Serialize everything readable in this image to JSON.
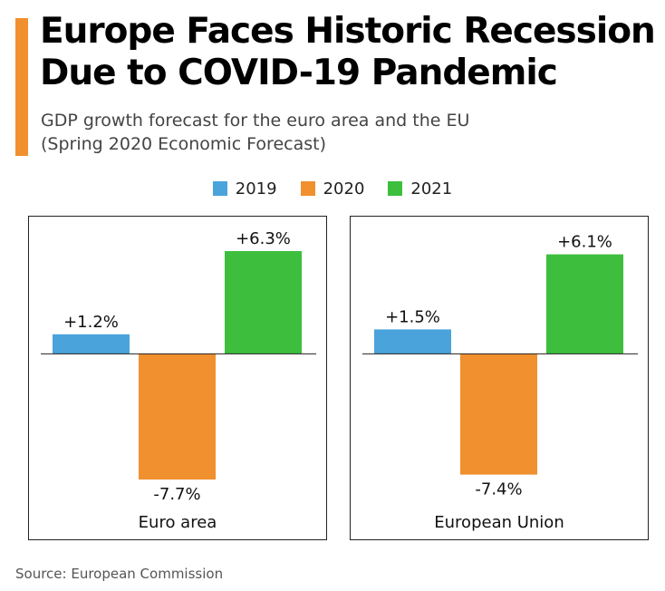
{
  "header": {
    "title_line1": "Europe Faces Historic Recession",
    "title_line2": "Due to COVID-19 Pandemic",
    "subtitle_line1": "GDP growth forecast for the euro area and the EU",
    "subtitle_line2": "(Spring 2020 Economic Forecast)"
  },
  "colors": {
    "accent": "#f0902f",
    "2019": "#4aa3db",
    "2020": "#f0902f",
    "2021": "#3dbf3d"
  },
  "legend": [
    "2019",
    "2020",
    "2021"
  ],
  "chart_data": [
    {
      "type": "bar",
      "title": "Euro area",
      "categories": [
        "2019",
        "2020",
        "2021"
      ],
      "values": [
        1.2,
        -7.7,
        6.3
      ],
      "value_labels": [
        "+1.2%",
        "-7.7%",
        "+6.3%"
      ],
      "ylim": [
        -7.7,
        6.3
      ]
    },
    {
      "type": "bar",
      "title": "European Union",
      "categories": [
        "2019",
        "2020",
        "2021"
      ],
      "values": [
        1.5,
        -7.4,
        6.1
      ],
      "value_labels": [
        "+1.5%",
        "-7.4%",
        "+6.1%"
      ],
      "ylim": [
        -7.7,
        6.3
      ]
    }
  ],
  "footer": {
    "source": "Source: European Commission"
  }
}
